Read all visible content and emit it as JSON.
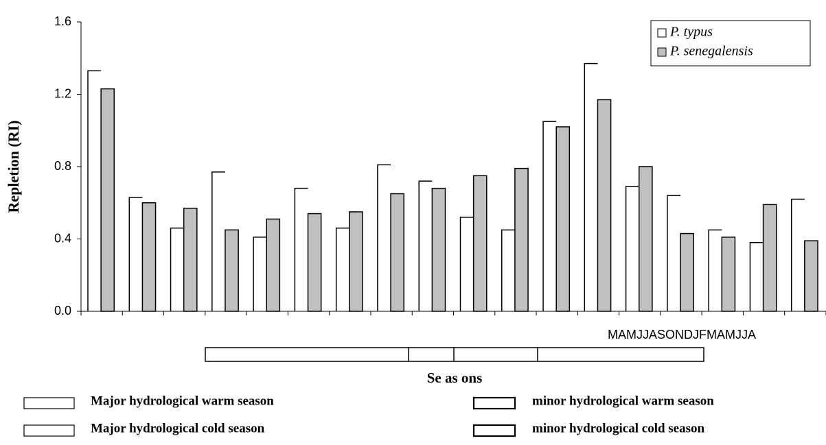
{
  "chart_data": {
    "type": "bar",
    "y_label": "Repletion (RI)",
    "x_label": "Se as ons",
    "month_labels": "MAMJJASONDJFMAMJJA",
    "categories": [
      null,
      null,
      null,
      null,
      null,
      null,
      null,
      null,
      null,
      null,
      null,
      null,
      null,
      null,
      null,
      null,
      null,
      null
    ],
    "series": [
      {
        "name": "P. typus",
        "color": "#ffffff",
        "values": [
          1.33,
          0.63,
          0.46,
          0.77,
          0.41,
          0.68,
          0.46,
          0.81,
          0.72,
          0.52,
          0.45,
          1.05,
          1.37,
          0.69,
          0.64,
          0.45,
          0.38,
          0.62
        ]
      },
      {
        "name": "P. senegalensis",
        "color": "#c0c0c0",
        "values": [
          1.23,
          0.6,
          0.57,
          0.45,
          0.51,
          0.54,
          0.55,
          0.65,
          0.68,
          0.75,
          0.79,
          1.02,
          1.17,
          0.8,
          0.43,
          0.41,
          0.59,
          0.39
        ]
      }
    ],
    "ylim": [
      0,
      1.6
    ],
    "yticks": [
      {
        "value": 0,
        "label": "0.0"
      },
      0.4,
      0.8,
      1.2,
      1.6
    ],
    "legend": "top-right",
    "season_legend": [
      "Major hydrological warm season",
      "Major hydrological cold season",
      "minor hydrological warm season",
      "minor hydrological cold season"
    ]
  }
}
